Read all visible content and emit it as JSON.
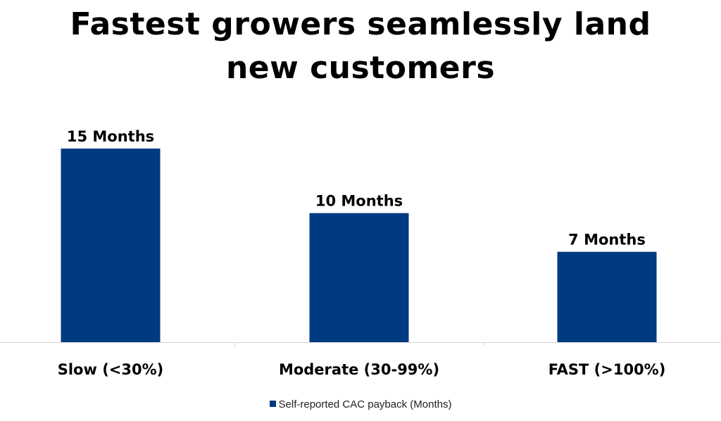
{
  "chart_data": {
    "type": "bar",
    "title_lines": [
      "Fastest growers seamlessly land",
      "new customers"
    ],
    "categories": [
      "Slow (<30%)",
      "Moderate (30-99%)",
      "FAST (>100%)"
    ],
    "series": [
      {
        "name": "Self-reported CAC payback (Months)",
        "values": [
          15,
          10,
          7
        ],
        "data_labels": [
          "15 Months",
          "10 Months",
          "7 Months"
        ],
        "color": "#003a80"
      }
    ],
    "xlabel": "",
    "ylabel": "",
    "ylim": [
      0,
      16
    ],
    "grid": false,
    "legend_position": "bottom"
  }
}
